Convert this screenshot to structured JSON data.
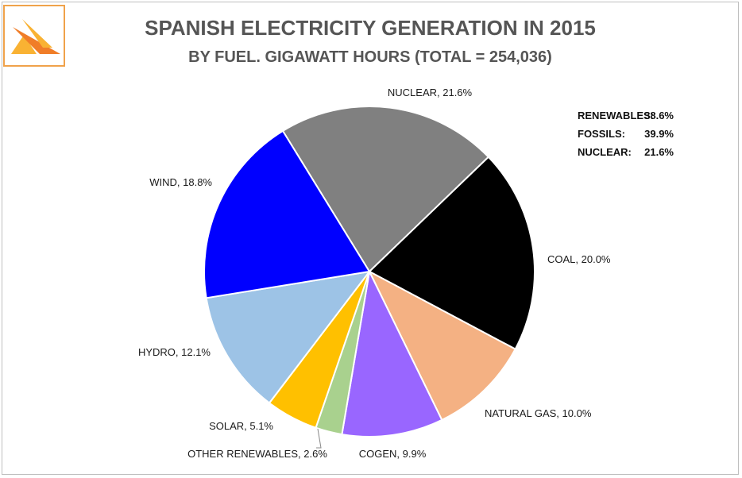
{
  "chart_data": {
    "type": "pie",
    "title": "SPANISH ELECTRICITY GENERATION IN 2015",
    "subtitle": "BY FUEL. GIGAWATT HOURS (TOTAL = 254,036)",
    "start_angle_deg": -31.6,
    "slices": [
      {
        "name": "NUCLEAR",
        "value": 21.6,
        "label": "NUCLEAR, 21.6%",
        "color": "#808080"
      },
      {
        "name": "COAL",
        "value": 20.0,
        "label": "COAL, 20.0%",
        "color": "#000000"
      },
      {
        "name": "NATURAL GAS",
        "value": 10.0,
        "label": "NATURAL  GAS, 10.0%",
        "color": "#f4b183"
      },
      {
        "name": "COGEN",
        "value": 9.9,
        "label": "COGEN, 9.9%",
        "color": "#9966ff"
      },
      {
        "name": "OTHER RENEWABLES",
        "value": 2.6,
        "label": "OTHER RENEWABLES, 2.6%",
        "color": "#a9d18e"
      },
      {
        "name": "SOLAR",
        "value": 5.1,
        "label": "SOLAR, 5.1%",
        "color": "#ffc000"
      },
      {
        "name": "HYDRO",
        "value": 12.1,
        "label": "HYDRO, 12.1%",
        "color": "#9dc3e6"
      },
      {
        "name": "WIND",
        "value": 18.8,
        "label": "WIND, 18.8%",
        "color": "#0000ff"
      }
    ],
    "summary": [
      {
        "label": "RENEWABLES:",
        "value": "38.6%"
      },
      {
        "label": "FOSSILS:",
        "value": "39.9%"
      },
      {
        "label": "NUCLEAR:",
        "value": "21.6%"
      }
    ]
  },
  "logo": {
    "icon": "triangle-logo-icon",
    "colors": [
      "#f9b233",
      "#f07d28"
    ]
  }
}
